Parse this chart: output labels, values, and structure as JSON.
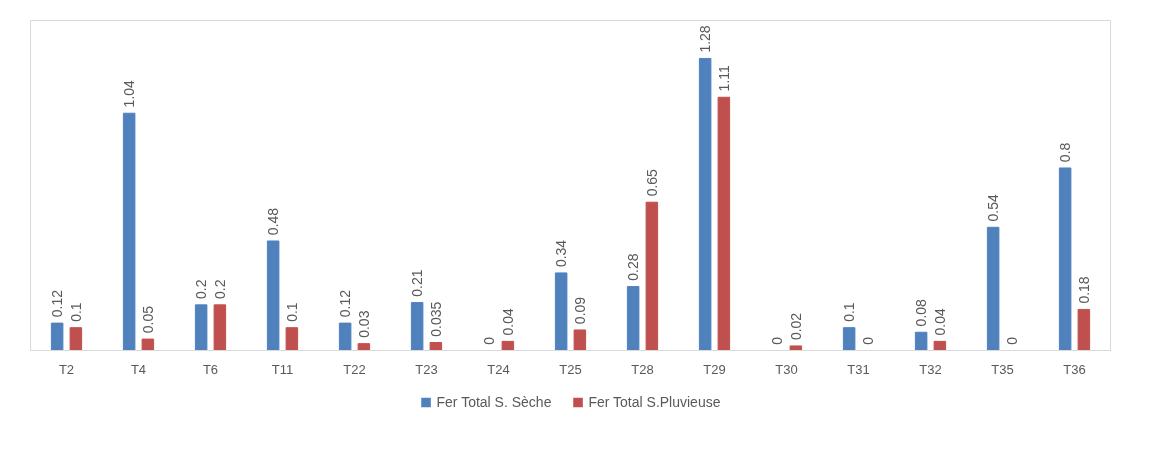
{
  "chart_data": {
    "type": "bar",
    "categories": [
      "T2",
      "T4",
      "T6",
      "T11",
      "T22",
      "T23",
      "T24",
      "T25",
      "T28",
      "T29",
      "T30",
      "T31",
      "T32",
      "T35",
      "T36"
    ],
    "series": [
      {
        "name": "Fer Total S. Sèche",
        "color": "#4f81bd",
        "values": [
          0.12,
          1.04,
          0.2,
          0.48,
          0.12,
          0.21,
          0,
          0.34,
          0.28,
          1.28,
          0,
          0.1,
          0.08,
          0.54,
          0.8
        ]
      },
      {
        "name": "Fer Total S.Pluvieuse",
        "color": "#c0504d",
        "values": [
          0.1,
          0.05,
          0.2,
          0.1,
          0.03,
          0.035,
          0.04,
          0.09,
          0.65,
          1.11,
          0.02,
          0,
          0.04,
          0,
          0.18
        ]
      }
    ],
    "data_labels": true,
    "grid": false,
    "legend": "bottom"
  }
}
